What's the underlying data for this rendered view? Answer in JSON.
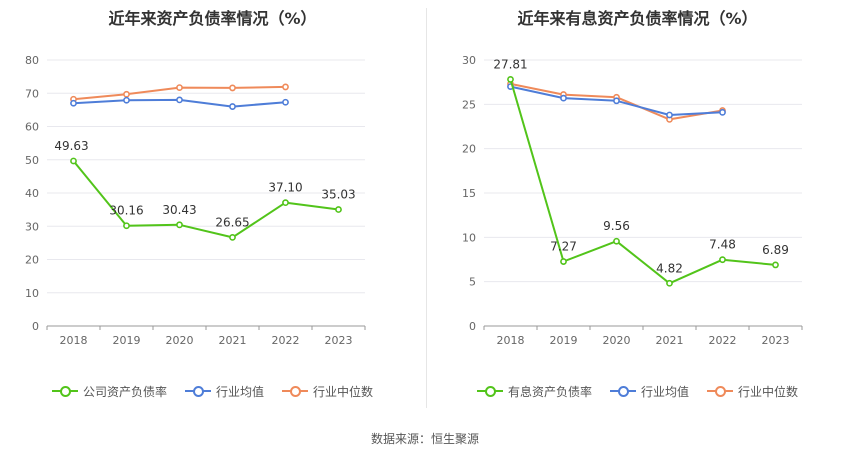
{
  "source_text": "数据来源：恒生聚源",
  "chart_data": [
    {
      "type": "line",
      "title": "近年来资产负债率情况（%）",
      "categories": [
        "2018",
        "2019",
        "2020",
        "2021",
        "2022",
        "2023"
      ],
      "ylim": [
        0,
        80
      ],
      "yticks": [
        0,
        10,
        20,
        30,
        40,
        50,
        60,
        70,
        80
      ],
      "grid": true,
      "legend_position": "bottom",
      "series": [
        {
          "name": "公司资产负债率",
          "color": "#52c41a",
          "values": [
            49.63,
            30.16,
            30.43,
            26.65,
            37.1,
            35.03
          ],
          "labels": [
            "49.63",
            "30.16",
            "30.43",
            "26.65",
            "37.10",
            "35.03"
          ]
        },
        {
          "name": "行业均值",
          "color": "#4e7dd8",
          "values": [
            67.0,
            67.9,
            68.0,
            66.0,
            67.3,
            null
          ]
        },
        {
          "name": "行业中位数",
          "color": "#ef8a5a",
          "values": [
            68.2,
            69.7,
            71.7,
            71.6,
            71.9,
            null
          ]
        }
      ]
    },
    {
      "type": "line",
      "title": "近年来有息资产负债率情况（%）",
      "categories": [
        "2018",
        "2019",
        "2020",
        "2021",
        "2022",
        "2023"
      ],
      "ylim": [
        0,
        30
      ],
      "yticks": [
        0,
        5,
        10,
        15,
        20,
        25,
        30
      ],
      "grid": true,
      "legend_position": "bottom",
      "series": [
        {
          "name": "有息资产负债率",
          "color": "#52c41a",
          "values": [
            27.81,
            7.27,
            9.56,
            4.82,
            7.48,
            6.89
          ],
          "labels": [
            "27.81",
            "7.27",
            "9.56",
            "4.82",
            "7.48",
            "6.89"
          ]
        },
        {
          "name": "行业均值",
          "color": "#4e7dd8",
          "values": [
            27.0,
            25.7,
            25.4,
            23.8,
            24.1,
            null
          ]
        },
        {
          "name": "行业中位数",
          "color": "#ef8a5a",
          "values": [
            27.3,
            26.1,
            25.8,
            23.3,
            24.3,
            null
          ]
        }
      ]
    }
  ]
}
